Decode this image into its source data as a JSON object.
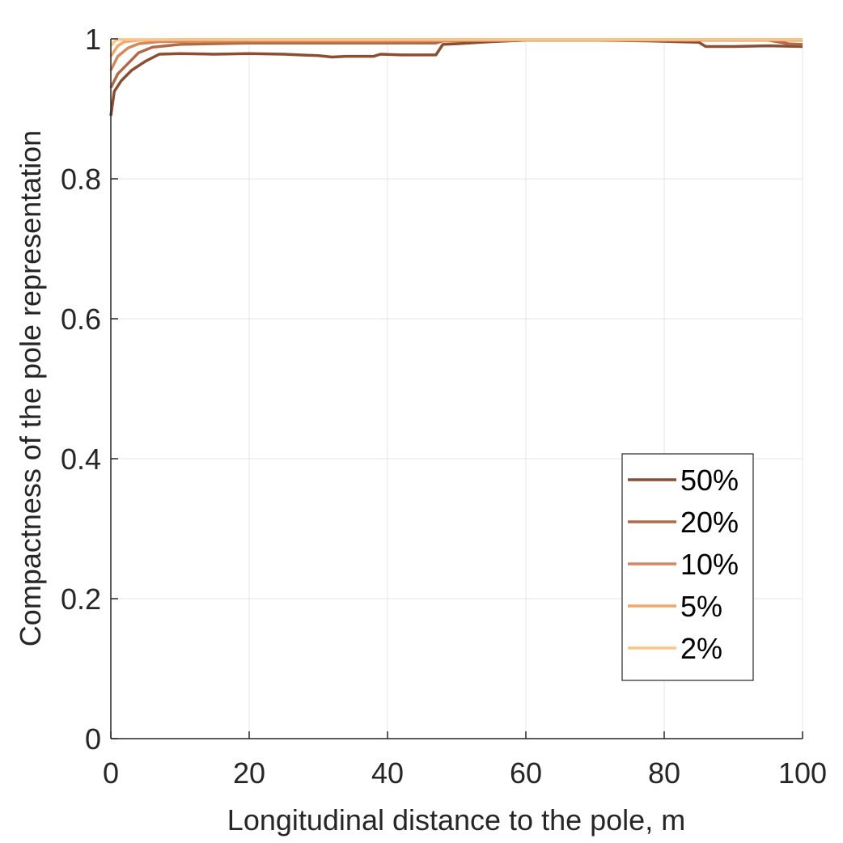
{
  "chart_data": {
    "type": "line",
    "title": "",
    "xlabel": "Longitudinal distance to the pole, m",
    "ylabel": "Compactness of the pole representation",
    "xlim": [
      0,
      100
    ],
    "ylim": [
      0,
      1
    ],
    "xticks": [
      0,
      20,
      40,
      60,
      80,
      100
    ],
    "xtick_labels": [
      "0",
      "20",
      "40",
      "60",
      "80",
      "100"
    ],
    "yticks": [
      0,
      0.2,
      0.4,
      0.6,
      0.8,
      1
    ],
    "ytick_labels": [
      "0",
      "0.2",
      "0.4",
      "0.6",
      "0.8",
      "1"
    ],
    "grid": true,
    "legend_position": "bottom-right",
    "series": [
      {
        "name": "50%",
        "color": "#8b4e32",
        "points": [
          [
            0,
            0.89
          ],
          [
            0.5,
            0.925
          ],
          [
            1.5,
            0.94
          ],
          [
            3,
            0.955
          ],
          [
            5,
            0.968
          ],
          [
            7,
            0.978
          ],
          [
            10,
            0.979
          ],
          [
            15,
            0.978
          ],
          [
            20,
            0.979
          ],
          [
            25,
            0.978
          ],
          [
            30,
            0.976
          ],
          [
            32,
            0.974
          ],
          [
            34,
            0.975
          ],
          [
            38,
            0.975
          ],
          [
            39,
            0.978
          ],
          [
            42,
            0.977
          ],
          [
            47,
            0.977
          ],
          [
            48,
            0.992
          ],
          [
            50,
            0.993
          ],
          [
            55,
            0.996
          ],
          [
            60,
            0.998
          ],
          [
            70,
            0.998
          ],
          [
            78,
            0.997
          ],
          [
            85,
            0.995
          ],
          [
            86,
            0.989
          ],
          [
            90,
            0.989
          ],
          [
            95,
            0.99
          ],
          [
            100,
            0.989
          ]
        ]
      },
      {
        "name": "20%",
        "color": "#b06a48",
        "points": [
          [
            0,
            0.93
          ],
          [
            1,
            0.95
          ],
          [
            2.5,
            0.965
          ],
          [
            4,
            0.98
          ],
          [
            6,
            0.988
          ],
          [
            10,
            0.992
          ],
          [
            20,
            0.994
          ],
          [
            40,
            0.994
          ],
          [
            47,
            0.994
          ],
          [
            48,
            0.997
          ],
          [
            60,
            0.998
          ],
          [
            80,
            0.998
          ],
          [
            95,
            0.998
          ],
          [
            98,
            0.993
          ],
          [
            100,
            0.992
          ]
        ]
      },
      {
        "name": "10%",
        "color": "#d4885e",
        "points": [
          [
            0,
            0.955
          ],
          [
            1,
            0.975
          ],
          [
            2.5,
            0.987
          ],
          [
            4,
            0.993
          ],
          [
            7,
            0.996
          ],
          [
            20,
            0.997
          ],
          [
            40,
            0.997
          ],
          [
            60,
            0.998
          ],
          [
            80,
            0.998
          ],
          [
            100,
            0.998
          ]
        ]
      },
      {
        "name": "5%",
        "color": "#f2a769",
        "points": [
          [
            0,
            0.975
          ],
          [
            1,
            0.99
          ],
          [
            2,
            0.996
          ],
          [
            4,
            0.998
          ],
          [
            10,
            0.999
          ],
          [
            50,
            0.999
          ],
          [
            100,
            0.999
          ]
        ]
      },
      {
        "name": "2%",
        "color": "#fcc583",
        "points": [
          [
            0,
            0.99
          ],
          [
            0.5,
            0.996
          ],
          [
            1,
            0.999
          ],
          [
            10,
            0.999
          ],
          [
            100,
            0.999
          ]
        ]
      }
    ]
  }
}
